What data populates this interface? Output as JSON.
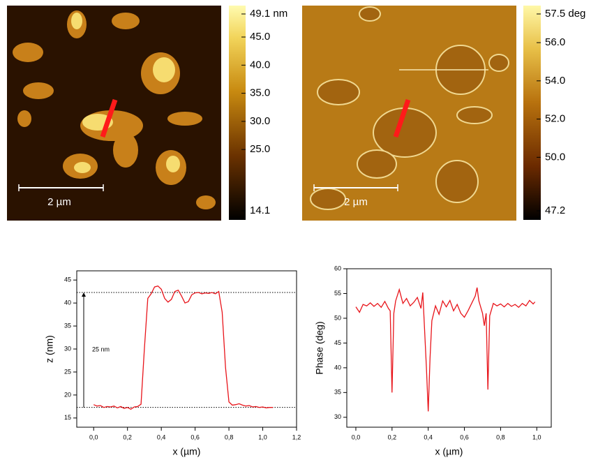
{
  "images": [
    {
      "scale_bar": "2 µm",
      "colorbar": {
        "clim": [
          14.1,
          49.1
        ],
        "ticks": [
          {
            "value": 49.1,
            "label": "49.1 nm"
          },
          {
            "value": 45,
            "label": "45.0"
          },
          {
            "value": 40,
            "label": "40.0"
          },
          {
            "value": 35,
            "label": "35.0"
          },
          {
            "value": 30,
            "label": "30.0"
          },
          {
            "value": 25,
            "label": "25.0"
          },
          {
            "value": 14.1,
            "label": "14.1"
          }
        ]
      }
    },
    {
      "scale_bar": "2 µm",
      "colorbar": {
        "clim": [
          47.2,
          57.5
        ],
        "ticks": [
          {
            "value": 57.5,
            "label": "57.5 deg"
          },
          {
            "value": 56,
            "label": "56.0"
          },
          {
            "value": 54,
            "label": "54.0"
          },
          {
            "value": 52,
            "label": "52.0"
          },
          {
            "value": 50,
            "label": "50.0"
          },
          {
            "value": 47.2,
            "label": "47.2"
          }
        ]
      }
    }
  ],
  "chart_data": [
    {
      "type": "line",
      "x_label": "x (µm)",
      "y_label": "z (nm)",
      "xlim": [
        -0.1,
        1.2
      ],
      "ylim": [
        13,
        47
      ],
      "xticks": [
        {
          "value": 0,
          "label": "0,0"
        },
        {
          "value": 0.2,
          "label": "0,2"
        },
        {
          "value": 0.4,
          "label": "0,4"
        },
        {
          "value": 0.6,
          "label": "0,6"
        },
        {
          "value": 0.8,
          "label": "0,8"
        },
        {
          "value": 1.0,
          "label": "1,0"
        },
        {
          "value": 1.2,
          "label": "1,2"
        }
      ],
      "yticks": [
        15,
        20,
        25,
        30,
        35,
        40,
        45
      ],
      "reference_lines": [
        42.3,
        17.3
      ],
      "annotation": "25 nm",
      "x": [
        0,
        0.02,
        0.04,
        0.06,
        0.08,
        0.1,
        0.12,
        0.14,
        0.16,
        0.18,
        0.2,
        0.22,
        0.24,
        0.26,
        0.28,
        0.3,
        0.32,
        0.34,
        0.36,
        0.38,
        0.4,
        0.42,
        0.44,
        0.46,
        0.48,
        0.5,
        0.52,
        0.54,
        0.56,
        0.58,
        0.6,
        0.62,
        0.64,
        0.66,
        0.68,
        0.7,
        0.72,
        0.74,
        0.76,
        0.78,
        0.8,
        0.82,
        0.84,
        0.86,
        0.88,
        0.9,
        0.92,
        0.94,
        0.96,
        0.98,
        1.0,
        1.02,
        1.04,
        1.06
      ],
      "series": [
        {
          "color": "#e8141a",
          "values": [
            17.9,
            17.6,
            17.7,
            17.3,
            17.5,
            17.4,
            17.6,
            17.2,
            17.5,
            17.1,
            17.3,
            16.9,
            17.4,
            17.5,
            18.0,
            30.0,
            41.0,
            42.0,
            43.5,
            43.7,
            43.0,
            41.0,
            40.2,
            40.8,
            42.5,
            42.8,
            41.5,
            40.0,
            40.3,
            41.8,
            42.2,
            42.3,
            42.0,
            42.2,
            42.1,
            42.3,
            42.0,
            42.5,
            38.0,
            26.0,
            18.5,
            17.8,
            17.9,
            18.1,
            17.8,
            17.6,
            17.7,
            17.4,
            17.5,
            17.3,
            17.4,
            17.2,
            17.3,
            17.3
          ]
        }
      ]
    },
    {
      "type": "line",
      "x_label": "x (µm)",
      "y_label": "Phase (deg)",
      "xlim": [
        -0.05,
        1.08
      ],
      "ylim": [
        28,
        60
      ],
      "xticks": [
        {
          "value": 0,
          "label": "0,0"
        },
        {
          "value": 0.2,
          "label": "0,2"
        },
        {
          "value": 0.4,
          "label": "0,4"
        },
        {
          "value": 0.6,
          "label": "0,6"
        },
        {
          "value": 0.8,
          "label": "0,8"
        },
        {
          "value": 1.0,
          "label": "1,0"
        }
      ],
      "yticks": [
        30,
        35,
        40,
        45,
        50,
        55,
        60
      ],
      "x": [
        0,
        0.02,
        0.04,
        0.06,
        0.08,
        0.1,
        0.12,
        0.14,
        0.16,
        0.18,
        0.19,
        0.2,
        0.21,
        0.22,
        0.24,
        0.26,
        0.28,
        0.3,
        0.32,
        0.34,
        0.36,
        0.37,
        0.39,
        0.4,
        0.41,
        0.42,
        0.44,
        0.46,
        0.48,
        0.5,
        0.52,
        0.54,
        0.56,
        0.58,
        0.6,
        0.62,
        0.64,
        0.66,
        0.67,
        0.68,
        0.7,
        0.71,
        0.72,
        0.73,
        0.74,
        0.76,
        0.78,
        0.8,
        0.82,
        0.84,
        0.86,
        0.88,
        0.9,
        0.92,
        0.94,
        0.96,
        0.98,
        0.99
      ],
      "series": [
        {
          "color": "#e8141a",
          "values": [
            52.3,
            51.2,
            52.8,
            52.5,
            53.1,
            52.4,
            53.0,
            52.2,
            53.4,
            52.0,
            51.5,
            35.0,
            51.0,
            53.5,
            55.8,
            53.0,
            54.0,
            52.5,
            53.2,
            54.2,
            52.0,
            55.2,
            40.0,
            31.2,
            42.0,
            49.5,
            52.5,
            50.8,
            53.5,
            52.3,
            53.6,
            51.5,
            52.8,
            51.0,
            50.2,
            51.5,
            53.0,
            54.5,
            56.2,
            53.5,
            51.0,
            48.5,
            51.0,
            35.6,
            50.5,
            53.0,
            52.5,
            52.9,
            52.3,
            53.0,
            52.4,
            52.8,
            52.2,
            53.0,
            52.5,
            53.6,
            52.9,
            53.3
          ]
        }
      ]
    }
  ]
}
